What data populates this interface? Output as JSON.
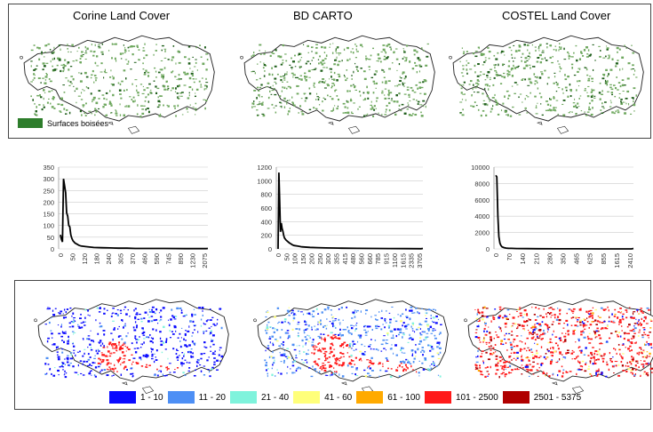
{
  "top_panel": {
    "maps": [
      {
        "title": "Corine Land Cover"
      },
      {
        "title": "BD CARTO"
      },
      {
        "title": "COSTEL Land Cover"
      }
    ],
    "legend_label": "Surfaces boisées",
    "legend_color": "#2d7d2b"
  },
  "chart_data": [
    {
      "type": "line",
      "yticks": [
        "0",
        "50",
        "100",
        "150",
        "200",
        "250",
        "300",
        "350"
      ],
      "ylim": [
        0,
        350
      ],
      "xticks": [
        "0",
        "50",
        "120",
        "180",
        "240",
        "305",
        "370",
        "460",
        "590",
        "745",
        "890",
        "1230",
        "2075"
      ],
      "x": [
        0,
        1,
        2,
        3,
        4,
        5,
        6,
        7,
        8,
        9,
        10,
        11,
        12,
        14,
        16,
        18,
        20,
        24,
        28,
        32,
        40,
        48,
        56,
        64,
        72,
        80,
        100,
        120,
        140
      ],
      "values": [
        60,
        40,
        30,
        300,
        270,
        240,
        155,
        140,
        100,
        95,
        60,
        45,
        35,
        25,
        20,
        15,
        12,
        10,
        8,
        6,
        5,
        4,
        3,
        3,
        2,
        2,
        2,
        1,
        1
      ],
      "grid": true
    },
    {
      "type": "line",
      "yticks": [
        "0",
        "200",
        "400",
        "600",
        "800",
        "1000",
        "1200"
      ],
      "ylim": [
        0,
        1200
      ],
      "xticks": [
        "0",
        "50",
        "100",
        "150",
        "200",
        "250",
        "300",
        "355",
        "415",
        "480",
        "560",
        "660",
        "785",
        "915",
        "1100",
        "1615",
        "2335",
        "3705"
      ],
      "x": [
        0,
        1,
        2,
        3,
        4,
        5,
        6,
        7,
        8,
        10,
        12,
        14,
        16,
        18,
        20,
        25,
        30,
        40,
        50,
        60,
        80,
        100,
        120,
        140,
        160,
        180
      ],
      "values": [
        0,
        1120,
        700,
        250,
        380,
        300,
        260,
        200,
        160,
        130,
        110,
        90,
        75,
        60,
        50,
        40,
        30,
        22,
        18,
        14,
        10,
        8,
        6,
        5,
        4,
        3
      ],
      "grid": true
    },
    {
      "type": "line",
      "yticks": [
        "0",
        "2000",
        "4000",
        "6000",
        "8000",
        "10000"
      ],
      "ylim": [
        0,
        10000
      ],
      "xticks": [
        "0",
        "70",
        "140",
        "210",
        "280",
        "350",
        "465",
        "625",
        "855",
        "1615",
        "2410"
      ],
      "x": [
        0,
        1,
        2,
        3,
        4,
        5,
        6,
        8,
        10,
        12,
        15,
        20,
        30,
        40,
        60,
        80,
        100,
        130
      ],
      "values": [
        9000,
        8800,
        4000,
        1500,
        700,
        400,
        250,
        150,
        100,
        80,
        60,
        40,
        30,
        20,
        15,
        10,
        5,
        0
      ],
      "grid": true
    }
  ],
  "bottom_panel": {
    "legend": [
      {
        "label": "1 - 10",
        "color": "#0a0aff"
      },
      {
        "label": "11 - 20",
        "color": "#4d8ff5"
      },
      {
        "label": "21 - 40",
        "color": "#7ff3dc"
      },
      {
        "label": "41 - 60",
        "color": "#ffff7a"
      },
      {
        "label": "61 - 100",
        "color": "#ffaa00"
      },
      {
        "label": "101 - 2500",
        "color": "#ff1a1a"
      },
      {
        "label": "2501 - 5375",
        "color": "#b00000"
      }
    ]
  }
}
